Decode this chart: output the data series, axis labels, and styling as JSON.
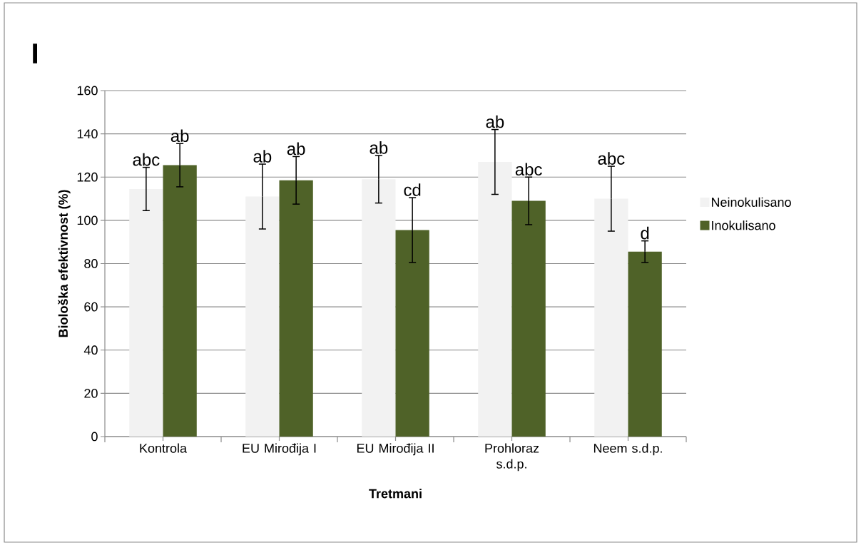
{
  "chart_data": {
    "type": "bar",
    "title": "I",
    "xlabel": "Tretmani",
    "ylabel": "Biološka efektivnost (%)",
    "categories": [
      "Kontrola",
      "EU Mirođija I",
      "EU Mirođija II",
      "Prohloraz s.d.p.",
      "Neem s.d.p."
    ],
    "series": [
      {
        "name": "Neinokulisano",
        "color": "#f2f2f2",
        "values": [
          114.5,
          111,
          119,
          127,
          110
        ],
        "errors": [
          10,
          15,
          11,
          15,
          15
        ]
      },
      {
        "name": "Inokulisano",
        "color": "#4f6228",
        "values": [
          125.5,
          118.5,
          95.5,
          109,
          85.5
        ],
        "errors": [
          10,
          11,
          15,
          11,
          5
        ]
      }
    ],
    "ylim": [
      0,
      160
    ],
    "yticks": [
      0,
      20,
      40,
      60,
      80,
      100,
      120,
      140,
      160
    ],
    "grid": "y",
    "legend": "right",
    "annotations": [
      "abc",
      "ab",
      "ab",
      "ab",
      "ab",
      "cd",
      "ab",
      "abc",
      "abc",
      "d"
    ]
  }
}
